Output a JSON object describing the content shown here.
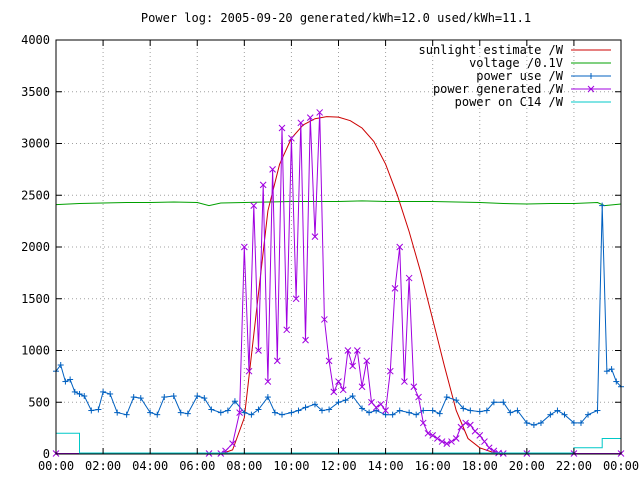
{
  "chart_data": {
    "type": "line",
    "title": "Power log: 2005-09-20 generated/kWh=12.0 used/kWh=11.1",
    "xlabel": "",
    "ylabel": "",
    "xlim": [
      0,
      24
    ],
    "ylim": [
      0,
      4000
    ],
    "grid": true,
    "legend_position": "top-right",
    "x_ticks": [
      "00:00",
      "02:00",
      "04:00",
      "06:00",
      "08:00",
      "10:00",
      "12:00",
      "14:00",
      "16:00",
      "18:00",
      "20:00",
      "22:00",
      "00:00"
    ],
    "y_ticks": [
      0,
      500,
      1000,
      1500,
      2000,
      2500,
      3000,
      3500,
      4000
    ],
    "series": [
      {
        "name": "sunlight estimate /W",
        "color": "#cc0000",
        "marker": "none",
        "x": [
          0,
          7.0,
          7.5,
          8.0,
          8.5,
          9.0,
          9.5,
          10.0,
          10.5,
          11.0,
          11.5,
          12.0,
          12.5,
          13.0,
          13.5,
          14.0,
          14.5,
          15.0,
          15.5,
          16.0,
          16.5,
          17.0,
          17.5,
          18.0,
          18.5,
          19.0,
          24
        ],
        "y": [
          0,
          0,
          40,
          350,
          1350,
          2350,
          2800,
          3050,
          3180,
          3240,
          3260,
          3255,
          3220,
          3150,
          3020,
          2800,
          2500,
          2150,
          1750,
          1300,
          850,
          420,
          150,
          60,
          20,
          0,
          0
        ]
      },
      {
        "name": "voltage /0.1V",
        "color": "#00a000",
        "marker": "none",
        "x": [
          0,
          1,
          2,
          3,
          4,
          5,
          6,
          6.5,
          7,
          8,
          9,
          10,
          11,
          12,
          13,
          14,
          15,
          16,
          17,
          18,
          19,
          20,
          21,
          22,
          23,
          23.3,
          24
        ],
        "y": [
          2410,
          2420,
          2425,
          2430,
          2430,
          2435,
          2430,
          2400,
          2425,
          2430,
          2435,
          2440,
          2440,
          2440,
          2445,
          2440,
          2440,
          2440,
          2435,
          2430,
          2420,
          2415,
          2420,
          2420,
          2430,
          2400,
          2415
        ]
      },
      {
        "name": "power use /W",
        "color": "#0060c0",
        "marker": "plus",
        "x": [
          0,
          0.2,
          0.4,
          0.6,
          0.8,
          1.0,
          1.2,
          1.5,
          1.8,
          2.0,
          2.3,
          2.6,
          3.0,
          3.3,
          3.6,
          4.0,
          4.3,
          4.6,
          5.0,
          5.3,
          5.6,
          6.0,
          6.3,
          6.6,
          7.0,
          7.3,
          7.6,
          8.0,
          8.3,
          8.6,
          9.0,
          9.3,
          9.6,
          10.0,
          10.3,
          10.6,
          11.0,
          11.3,
          11.6,
          12.0,
          12.3,
          12.6,
          13.0,
          13.3,
          13.6,
          14.0,
          14.3,
          14.6,
          15.0,
          15.3,
          15.6,
          16.0,
          16.3,
          16.6,
          17.0,
          17.3,
          17.6,
          18.0,
          18.3,
          18.6,
          19.0,
          19.3,
          19.6,
          20.0,
          20.3,
          20.6,
          21.0,
          21.3,
          21.6,
          22.0,
          22.3,
          22.6,
          23.0,
          23.2,
          23.4,
          23.6,
          23.8,
          24.0
        ],
        "y": [
          800,
          860,
          700,
          720,
          600,
          580,
          560,
          420,
          430,
          600,
          580,
          400,
          380,
          550,
          540,
          400,
          380,
          550,
          560,
          400,
          390,
          560,
          540,
          430,
          400,
          420,
          510,
          400,
          380,
          430,
          550,
          400,
          380,
          400,
          420,
          450,
          480,
          420,
          430,
          500,
          520,
          560,
          440,
          400,
          420,
          380,
          380,
          420,
          400,
          380,
          420,
          420,
          390,
          550,
          520,
          440,
          420,
          410,
          420,
          500,
          500,
          400,
          420,
          300,
          280,
          300,
          380,
          420,
          380,
          300,
          300,
          380,
          420,
          2400,
          800,
          820,
          700,
          650
        ]
      },
      {
        "name": "power generated /W",
        "color": "#a000e0",
        "marker": "cross",
        "x": [
          0,
          6.5,
          7.0,
          7.2,
          7.5,
          7.8,
          8.0,
          8.2,
          8.4,
          8.6,
          8.8,
          9.0,
          9.2,
          9.4,
          9.6,
          9.8,
          10.0,
          10.2,
          10.4,
          10.6,
          10.8,
          11.0,
          11.2,
          11.4,
          11.6,
          11.8,
          12.0,
          12.2,
          12.4,
          12.6,
          12.8,
          13.0,
          13.2,
          13.4,
          13.6,
          13.8,
          14.0,
          14.2,
          14.4,
          14.6,
          14.8,
          15.0,
          15.2,
          15.4,
          15.6,
          15.8,
          16.0,
          16.2,
          16.4,
          16.6,
          16.8,
          17.0,
          17.2,
          17.4,
          17.6,
          17.8,
          18.0,
          18.2,
          18.4,
          18.6,
          18.8,
          19.0,
          20.0,
          22.0,
          24.0
        ],
        "y": [
          5,
          5,
          5,
          30,
          100,
          400,
          2000,
          800,
          2400,
          1000,
          2600,
          700,
          2750,
          900,
          3150,
          1200,
          3050,
          1500,
          3200,
          1100,
          3250,
          2100,
          3300,
          1300,
          900,
          600,
          700,
          620,
          1000,
          850,
          1000,
          650,
          900,
          500,
          450,
          480,
          420,
          800,
          1600,
          2000,
          700,
          1700,
          650,
          550,
          300,
          200,
          180,
          150,
          120,
          100,
          120,
          150,
          260,
          300,
          280,
          220,
          180,
          120,
          60,
          30,
          10,
          5,
          5,
          5,
          5
        ]
      },
      {
        "name": "power on C14 /W",
        "color": "#00c8c8",
        "marker": "none",
        "x": [
          0,
          1.0,
          1.0,
          22.0,
          22.0,
          23.2,
          23.2,
          24.0
        ],
        "y": [
          200,
          200,
          10,
          10,
          60,
          60,
          150,
          150
        ]
      }
    ]
  }
}
